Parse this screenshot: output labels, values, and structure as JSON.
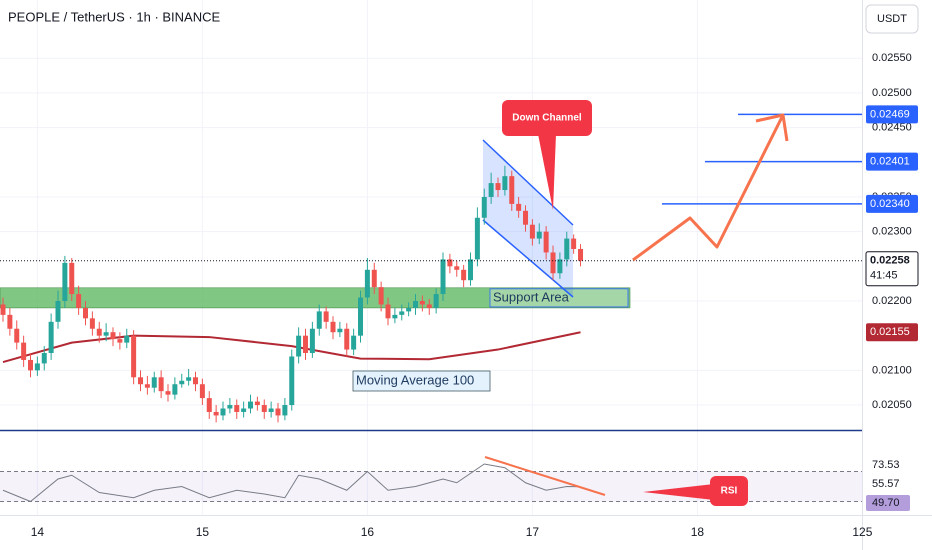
{
  "chart_data": {
    "type": "candlestick",
    "title": "PEOPLE / TetherUS · 1h · BINANCE",
    "currency": "USDT",
    "up_color": "#26a69a",
    "down_color": "#ef5350",
    "open": [
      0.02195,
      0.0218,
      0.0216,
      0.0214,
      0.02115,
      0.021,
      0.0211,
      0.02125,
      0.0217,
      0.022,
      0.02255,
      0.0221,
      0.0219,
      0.02175,
      0.0216,
      0.0215,
      0.02155,
      0.02145,
      0.0214,
      0.0215,
      0.0209,
      0.0208,
      0.02075,
      0.0209,
      0.0207,
      0.02065,
      0.0208,
      0.02085,
      0.0209,
      0.0208,
      0.0206,
      0.0204,
      0.02035,
      0.02045,
      0.0205,
      0.0204,
      0.02045,
      0.02055,
      0.0205,
      0.0204,
      0.02045,
      0.02035,
      0.0205,
      0.0212,
      0.0215,
      0.02125,
      0.0216,
      0.02185,
      0.0217,
      0.02155,
      0.0216,
      0.0213,
      0.0215,
      0.02205,
      0.02245,
      0.0222,
      0.02195,
      0.02175,
      0.0218,
      0.02185,
      0.0219,
      0.022,
      0.02195,
      0.0219,
      0.0221,
      0.0226,
      0.0225,
      0.02245,
      0.0223,
      0.0226,
      0.0232,
      0.0235,
      0.0237,
      0.0236,
      0.0238,
      0.0234,
      0.0233,
      0.0231,
      0.0229,
      0.023,
      0.0227,
      0.0224,
      0.0226,
      0.0229,
      0.02275
    ],
    "high": [
      0.02205,
      0.0219,
      0.02172,
      0.0215,
      0.02125,
      0.0212,
      0.02135,
      0.02182,
      0.02215,
      0.02265,
      0.02262,
      0.02222,
      0.022,
      0.02185,
      0.0217,
      0.02168,
      0.02162,
      0.02155,
      0.0216,
      0.02158,
      0.021,
      0.02092,
      0.02098,
      0.021,
      0.0208,
      0.0209,
      0.02095,
      0.02102,
      0.02098,
      0.02088,
      0.0207,
      0.0205,
      0.02055,
      0.0206,
      0.02058,
      0.02055,
      0.02065,
      0.02062,
      0.02058,
      0.02055,
      0.02053,
      0.0206,
      0.0213,
      0.02162,
      0.0216,
      0.0217,
      0.02195,
      0.02192,
      0.02178,
      0.0217,
      0.02168,
      0.0216,
      0.02215,
      0.02262,
      0.02255,
      0.02228,
      0.02205,
      0.0219,
      0.02195,
      0.02198,
      0.0221,
      0.02208,
      0.02203,
      0.02218,
      0.0227,
      0.02268,
      0.02258,
      0.02252,
      0.0227,
      0.02335,
      0.02362,
      0.02385,
      0.02378,
      0.02395,
      0.02388,
      0.0235,
      0.02338,
      0.02318,
      0.02312,
      0.02308,
      0.0228,
      0.0227,
      0.023,
      0.02296,
      0.02282
    ],
    "low": [
      0.0217,
      0.0215,
      0.0213,
      0.02105,
      0.0209,
      0.02092,
      0.021,
      0.02115,
      0.0216,
      0.0219,
      0.022,
      0.0218,
      0.02165,
      0.0215,
      0.0214,
      0.02142,
      0.02135,
      0.0213,
      0.02132,
      0.0208,
      0.0207,
      0.02065,
      0.02068,
      0.0206,
      0.02055,
      0.02058,
      0.02075,
      0.02078,
      0.0207,
      0.0205,
      0.0203,
      0.02025,
      0.02028,
      0.02038,
      0.0203,
      0.02032,
      0.02038,
      0.02042,
      0.0203,
      0.02032,
      0.02025,
      0.02028,
      0.02042,
      0.0211,
      0.02115,
      0.02118,
      0.0215,
      0.0216,
      0.02145,
      0.02148,
      0.0212,
      0.02122,
      0.0214,
      0.02195,
      0.0221,
      0.02185,
      0.02165,
      0.02168,
      0.02172,
      0.02178,
      0.0218,
      0.02185,
      0.0218,
      0.02182,
      0.022,
      0.0224,
      0.02235,
      0.0222,
      0.02222,
      0.0225,
      0.0231,
      0.0234,
      0.0235,
      0.02352,
      0.0233,
      0.0232,
      0.023,
      0.0228,
      0.02282,
      0.0226,
      0.0223,
      0.02232,
      0.0225,
      0.02268,
      0.0225
    ],
    "close": [
      0.0218,
      0.0216,
      0.0214,
      0.02115,
      0.021,
      0.0211,
      0.02125,
      0.0217,
      0.022,
      0.02255,
      0.0221,
      0.0219,
      0.02175,
      0.0216,
      0.0215,
      0.02155,
      0.02145,
      0.0214,
      0.0215,
      0.0209,
      0.0208,
      0.02075,
      0.0209,
      0.0207,
      0.02065,
      0.0208,
      0.02085,
      0.0209,
      0.0208,
      0.0206,
      0.0204,
      0.02035,
      0.02045,
      0.0205,
      0.0204,
      0.02045,
      0.02055,
      0.0205,
      0.0204,
      0.02045,
      0.02035,
      0.0205,
      0.0212,
      0.0215,
      0.02125,
      0.0216,
      0.02185,
      0.0217,
      0.02155,
      0.0216,
      0.0213,
      0.0215,
      0.02205,
      0.02245,
      0.0222,
      0.02195,
      0.02175,
      0.0218,
      0.02185,
      0.0219,
      0.022,
      0.02195,
      0.0219,
      0.0221,
      0.0226,
      0.0225,
      0.02245,
      0.0223,
      0.0226,
      0.0232,
      0.0235,
      0.0237,
      0.0236,
      0.0238,
      0.0234,
      0.0233,
      0.0231,
      0.0229,
      0.023,
      0.0227,
      0.0224,
      0.0226,
      0.0229,
      0.02275,
      0.02258
    ],
    "xlim": [
      0,
      125
    ],
    "xticks": [
      {
        "value": 5,
        "label": "14"
      },
      {
        "value": 29,
        "label": "15"
      },
      {
        "value": 53,
        "label": "16"
      },
      {
        "value": 77,
        "label": "17"
      },
      {
        "value": 101,
        "label": "18"
      },
      125
    ],
    "ylim": [
      0.02014,
      0.02634
    ],
    "yticks": [
      {
        "value": 0.0255,
        "label": "0.02550"
      },
      {
        "value": 0.025,
        "label": "0.02500"
      },
      {
        "value": 0.0245,
        "label": "0.02450"
      },
      {
        "value": 0.0235,
        "label": "0.02350"
      },
      {
        "value": 0.023,
        "label": "0.02300"
      },
      {
        "value": 0.022,
        "label": "0.02200"
      },
      {
        "value": 0.021,
        "label": "0.02100"
      },
      {
        "value": 0.0205,
        "label": "0.02050"
      }
    ],
    "grid": true,
    "moving_average": {
      "name": "Moving Average 100",
      "color": "#b22833",
      "x": [
        0,
        10,
        19,
        30,
        42,
        52,
        62,
        72,
        84
      ],
      "values": [
        0.02112,
        0.0214,
        0.0215,
        0.02148,
        0.02135,
        0.02117,
        0.02116,
        0.0213,
        0.02155
      ]
    },
    "last_price": {
      "value": 0.02258,
      "countdown": "41:45"
    },
    "levels": [
      0.02469,
      0.02401,
      {
        "value": 0.0234,
        "label": "0.02340"
      }
    ],
    "level_color": "#2962ff",
    "support_zone": {
      "label": "Support Area",
      "low": 0.0219,
      "high": 0.02219,
      "color": "#4caf50"
    },
    "annotations": [
      "Down Channel",
      "RSI"
    ],
    "rsi": {
      "ylim": [
        12,
        100
      ],
      "bands": [
        70,
        30
      ],
      "color": "#787b86",
      "x": [
        0,
        4,
        8,
        10,
        14,
        19,
        22,
        26,
        30,
        34,
        38,
        41,
        43,
        46,
        50,
        53,
        56,
        60,
        64,
        66,
        70,
        73,
        76,
        79,
        82,
        84
      ],
      "values": [
        45,
        30,
        60,
        65,
        42,
        35,
        45,
        50,
        35,
        45,
        40,
        35,
        65,
        60,
        45,
        70,
        45,
        50,
        60,
        55,
        80,
        75,
        55,
        45,
        50,
        49.7
      ],
      "labels": [
        73.53,
        55.57,
        {
          "value": 49.7,
          "label": "49.70"
        }
      ]
    }
  }
}
